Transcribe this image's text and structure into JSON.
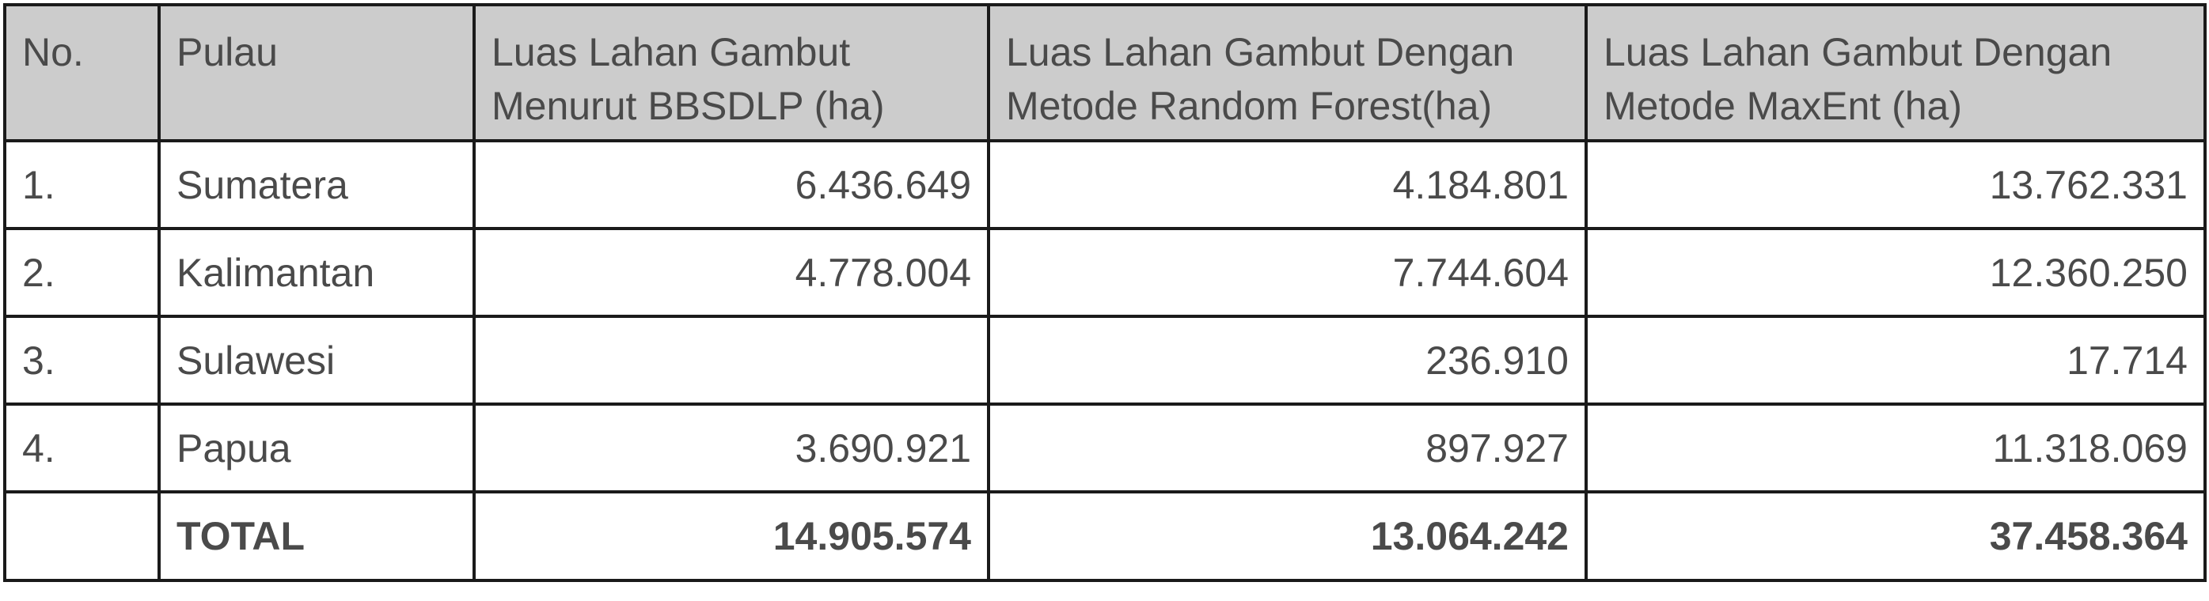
{
  "table": {
    "headers": [
      "No.",
      "Pulau",
      "Luas Lahan Gambut Menurut BBSDLP (ha)",
      "Luas Lahan Gambut Dengan Metode Random Forest(ha)",
      "Luas Lahan Gambut Dengan Metode MaxEnt (ha)"
    ],
    "rows": [
      {
        "no": "1.",
        "pulau": "Sumatera",
        "bbsdlp": "6.436.649",
        "random_forest": "4.184.801",
        "maxent": "13.762.331"
      },
      {
        "no": "2.",
        "pulau": "Kalimantan",
        "bbsdlp": "4.778.004",
        "random_forest": "7.744.604",
        "maxent": "12.360.250"
      },
      {
        "no": "3.",
        "pulau": "Sulawesi",
        "bbsdlp": "",
        "random_forest": "236.910",
        "maxent": "17.714"
      },
      {
        "no": "4.",
        "pulau": "Papua",
        "bbsdlp": "3.690.921",
        "random_forest": "897.927",
        "maxent": "11.318.069"
      }
    ],
    "total": {
      "no": "",
      "label": "TOTAL",
      "bbsdlp": "14.905.574",
      "random_forest": "13.064.242",
      "maxent": "37.458.364"
    }
  },
  "colors": {
    "header_bg": "#cccccc",
    "border": "#1a1a1a",
    "text": "#4a4a4a"
  }
}
